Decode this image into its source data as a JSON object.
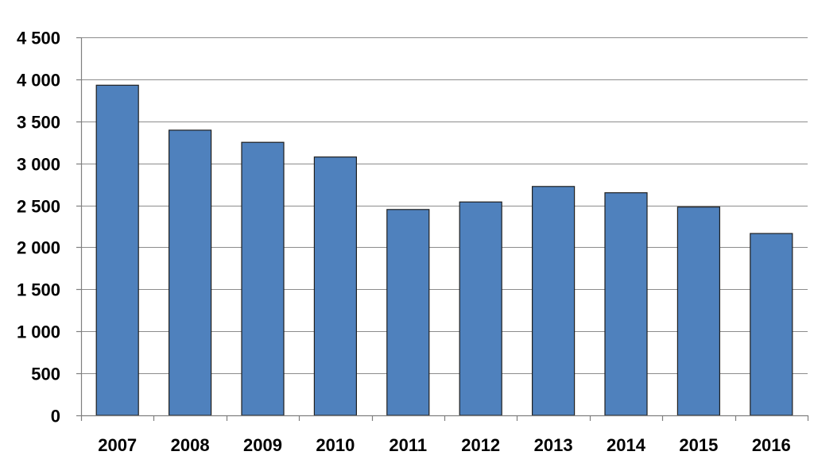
{
  "chart_data": {
    "type": "bar",
    "title": "",
    "xlabel": "",
    "ylabel": "",
    "categories": [
      "2007",
      "2008",
      "2009",
      "2010",
      "2011",
      "2012",
      "2013",
      "2014",
      "2015",
      "2016"
    ],
    "values": [
      3930,
      3395,
      3250,
      3075,
      2450,
      2540,
      2725,
      2650,
      2480,
      2165
    ],
    "ylim": [
      0,
      4500
    ],
    "yticks": [
      0,
      500,
      1000,
      1500,
      2000,
      2500,
      3000,
      3500,
      4000,
      4500
    ],
    "ytick_labels": [
      "0",
      "500",
      "1 000",
      "1 500",
      "2 000",
      "2 500",
      "3 000",
      "3 500",
      "4 000",
      "4 500"
    ],
    "grid": true,
    "legend": "none",
    "bar_color": "#4f81bd"
  }
}
